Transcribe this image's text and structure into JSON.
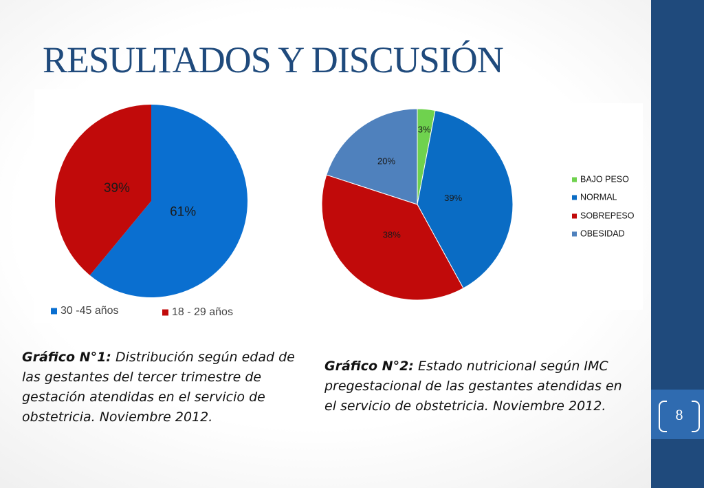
{
  "title": "RESULTADOS Y DISCUSIÓN",
  "page_number": "8",
  "colors": {
    "title": "#1f4a7c",
    "sidebar": "#1f4a7c",
    "sidebar_strip": "#2f6bb0"
  },
  "captions": [
    {
      "label": "Gráfico N°1:",
      "text": " Distribución según edad de las gestantes del tercer trimestre de gestación atendidas en el servicio de obstetricia. Noviembre 2012."
    },
    {
      "label": "Gráfico N°2:",
      "text": " Estado nutricional según IMC pregestacional de las gestantes atendidas en el servicio de obstetricia. Noviembre 2012."
    }
  ],
  "chart_data": [
    {
      "type": "pie",
      "title": "",
      "legend_position": "bottom",
      "categories": [
        "30 -45 años",
        "18 - 29 años"
      ],
      "values": [
        61,
        39
      ],
      "labels": [
        "61%",
        "39%"
      ],
      "colors": [
        "#0a6fd0",
        "#c10a0a"
      ]
    },
    {
      "type": "pie",
      "title": "",
      "legend_position": "right",
      "categories": [
        "BAJO PESO",
        "NORMAL",
        "SOBREPESO",
        "OBESIDAD"
      ],
      "values": [
        3,
        39,
        38,
        20
      ],
      "labels": [
        "3%",
        "39%",
        "38%",
        "20%"
      ],
      "colors": [
        "#6fd24e",
        "#0a6cc4",
        "#c10a0a",
        "#4f81bd"
      ]
    }
  ]
}
